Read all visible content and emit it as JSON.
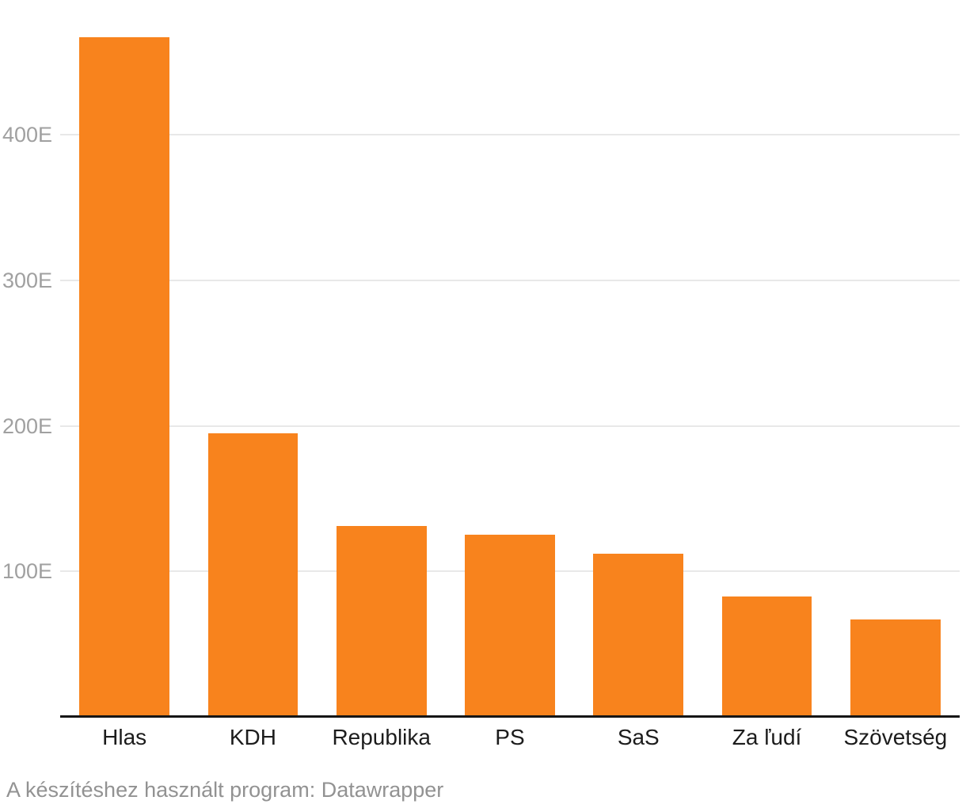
{
  "chart_data": {
    "type": "bar",
    "title": "",
    "categories": [
      "Hlas",
      "KDH",
      "Republika",
      "PS",
      "SaS",
      "Za ľudí",
      "Szövetség"
    ],
    "values": [
      467,
      195,
      131,
      125,
      112,
      83,
      67
    ],
    "value_suffix": "E",
    "y_ticks": [
      {
        "value": 100,
        "label": "100E"
      },
      {
        "value": 200,
        "label": "200E"
      },
      {
        "value": 300,
        "label": "300E"
      },
      {
        "value": 400,
        "label": "400E"
      }
    ],
    "ylim": [
      0,
      493
    ],
    "xlabel": "",
    "ylabel": "",
    "grid": "horizontal",
    "legend_position": "none"
  },
  "colors": {
    "bar": "#F8831D",
    "gridline": "#E8E8E8",
    "axis_line": "#161616",
    "tick_label": "#A0A0A0",
    "category_label": "#1C1C1C",
    "footer_text": "#929292",
    "background": "#FFFFFF"
  },
  "footer": {
    "text": "A készítéshez használt program: Datawrapper"
  }
}
